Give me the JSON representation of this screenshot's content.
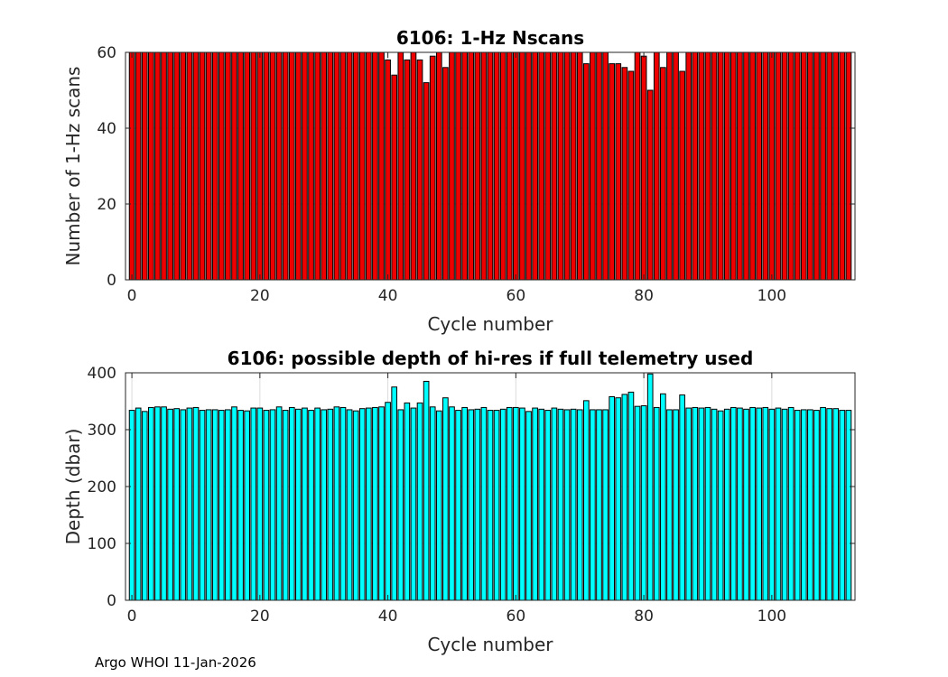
{
  "footer": "Argo WHOI 11-Jan-2026",
  "chart_data": [
    {
      "type": "bar",
      "title": "6106: 1-Hz Nscans",
      "xlabel": "Cycle number",
      "ylabel": "Number of 1-Hz scans",
      "xlim": [
        -1,
        113
      ],
      "ylim": [
        0,
        60
      ],
      "xticks": [
        0,
        20,
        40,
        60,
        80,
        100
      ],
      "yticks": [
        0,
        20,
        40,
        60
      ],
      "bar_color": "#ee0000",
      "grid": true,
      "x": [
        0,
        1,
        2,
        3,
        4,
        5,
        6,
        7,
        8,
        9,
        10,
        11,
        12,
        13,
        14,
        15,
        16,
        17,
        18,
        19,
        20,
        21,
        22,
        23,
        24,
        25,
        26,
        27,
        28,
        29,
        30,
        31,
        32,
        33,
        34,
        35,
        36,
        37,
        38,
        39,
        40,
        41,
        42,
        43,
        44,
        45,
        46,
        47,
        48,
        49,
        50,
        51,
        52,
        53,
        54,
        55,
        56,
        57,
        58,
        59,
        60,
        61,
        62,
        63,
        64,
        65,
        66,
        67,
        68,
        69,
        70,
        71,
        72,
        73,
        74,
        75,
        76,
        77,
        78,
        79,
        80,
        81,
        82,
        83,
        84,
        85,
        86,
        87,
        88,
        89,
        90,
        91,
        92,
        93,
        94,
        95,
        96,
        97,
        98,
        99,
        100,
        101,
        102,
        103,
        104,
        105,
        106,
        107,
        108,
        109,
        110,
        111,
        112
      ],
      "values": [
        60,
        60,
        60,
        60,
        60,
        60,
        60,
        60,
        60,
        60,
        60,
        60,
        60,
        60,
        60,
        60,
        60,
        60,
        60,
        60,
        60,
        60,
        60,
        60,
        60,
        60,
        60,
        60,
        60,
        60,
        60,
        60,
        60,
        60,
        60,
        60,
        60,
        60,
        60,
        60,
        58,
        54,
        60,
        58,
        60,
        58,
        52,
        59,
        60,
        56,
        60,
        60,
        60,
        60,
        60,
        60,
        60,
        60,
        60,
        60,
        60,
        60,
        60,
        60,
        60,
        60,
        60,
        60,
        60,
        60,
        60,
        57,
        60,
        60,
        60,
        57,
        57,
        56,
        55,
        60,
        59,
        50,
        60,
        56,
        60,
        60,
        55,
        60,
        60,
        60,
        60,
        60,
        60,
        60,
        60,
        60,
        60,
        60,
        60,
        60,
        60,
        60,
        60,
        60,
        60,
        60,
        60,
        60,
        60,
        60,
        60,
        60,
        60
      ]
    },
    {
      "type": "bar",
      "title": "6106: possible depth of hi-res if full telemetry used",
      "xlabel": "Cycle number",
      "ylabel": "Depth (dbar)",
      "xlim": [
        -1,
        113
      ],
      "ylim": [
        0,
        400
      ],
      "xticks": [
        0,
        20,
        40,
        60,
        80,
        100
      ],
      "yticks": [
        0,
        100,
        200,
        300,
        400
      ],
      "bar_color": "#00ffff",
      "grid": true,
      "x": [
        0,
        1,
        2,
        3,
        4,
        5,
        6,
        7,
        8,
        9,
        10,
        11,
        12,
        13,
        14,
        15,
        16,
        17,
        18,
        19,
        20,
        21,
        22,
        23,
        24,
        25,
        26,
        27,
        28,
        29,
        30,
        31,
        32,
        33,
        34,
        35,
        36,
        37,
        38,
        39,
        40,
        41,
        42,
        43,
        44,
        45,
        46,
        47,
        48,
        49,
        50,
        51,
        52,
        53,
        54,
        55,
        56,
        57,
        58,
        59,
        60,
        61,
        62,
        63,
        64,
        65,
        66,
        67,
        68,
        69,
        70,
        71,
        72,
        73,
        74,
        75,
        76,
        77,
        78,
        79,
        80,
        81,
        82,
        83,
        84,
        85,
        86,
        87,
        88,
        89,
        90,
        91,
        92,
        93,
        94,
        95,
        96,
        97,
        98,
        99,
        100,
        101,
        102,
        103,
        104,
        105,
        106,
        107,
        108,
        109,
        110,
        111,
        112
      ],
      "values": [
        334,
        338,
        332,
        339,
        340,
        340,
        336,
        337,
        335,
        338,
        339,
        334,
        335,
        335,
        334,
        335,
        340,
        334,
        333,
        338,
        338,
        334,
        335,
        340,
        334,
        339,
        336,
        338,
        334,
        338,
        335,
        336,
        340,
        339,
        335,
        333,
        337,
        338,
        339,
        340,
        348,
        375,
        335,
        347,
        338,
        347,
        385,
        340,
        333,
        356,
        340,
        334,
        339,
        335,
        336,
        339,
        334,
        334,
        336,
        339,
        339,
        338,
        332,
        338,
        336,
        334,
        338,
        336,
        335,
        336,
        335,
        351,
        335,
        335,
        335,
        358,
        356,
        362,
        366,
        341,
        342,
        398,
        339,
        363,
        335,
        335,
        361,
        338,
        339,
        338,
        339,
        336,
        333,
        336,
        339,
        338,
        336,
        339,
        338,
        339,
        336,
        338,
        336,
        339,
        334,
        335,
        335,
        334,
        339,
        337,
        337,
        334,
        334
      ]
    }
  ]
}
